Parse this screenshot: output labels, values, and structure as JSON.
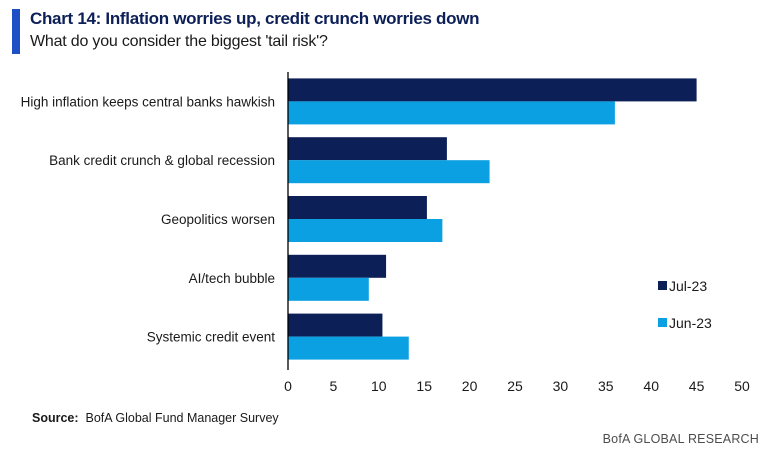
{
  "header": {
    "title": "Chart 14: Inflation worries up, credit crunch worries down",
    "subtitle": "What do you consider the biggest 'tail risk'?"
  },
  "footer": {
    "source_label": "Source:",
    "source_text": "BofA Global Fund Manager Survey",
    "brand": "BofA GLOBAL RESEARCH"
  },
  "colors": {
    "accent": "#1f4fc4",
    "jul": "#0c1f57",
    "jun": "#0aa0e2"
  },
  "chart_data": {
    "type": "bar",
    "orientation": "horizontal",
    "categories": [
      "High inflation keeps central banks hawkish",
      "Bank credit crunch & global recession",
      "Geopolitics worsen",
      "AI/tech bubble",
      "Systemic credit event"
    ],
    "series": [
      {
        "name": "Jul-23",
        "color": "#0c1f57",
        "values": [
          45,
          17.5,
          15.3,
          10.8,
          10.4
        ]
      },
      {
        "name": "Jun-23",
        "color": "#0aa0e2",
        "values": [
          36,
          22.2,
          17,
          8.9,
          13.3
        ]
      }
    ],
    "xlim": [
      0,
      50
    ],
    "xticks": [
      0,
      5,
      10,
      15,
      20,
      25,
      30,
      35,
      40,
      45,
      50
    ],
    "legend_position": "right",
    "grid": false
  }
}
